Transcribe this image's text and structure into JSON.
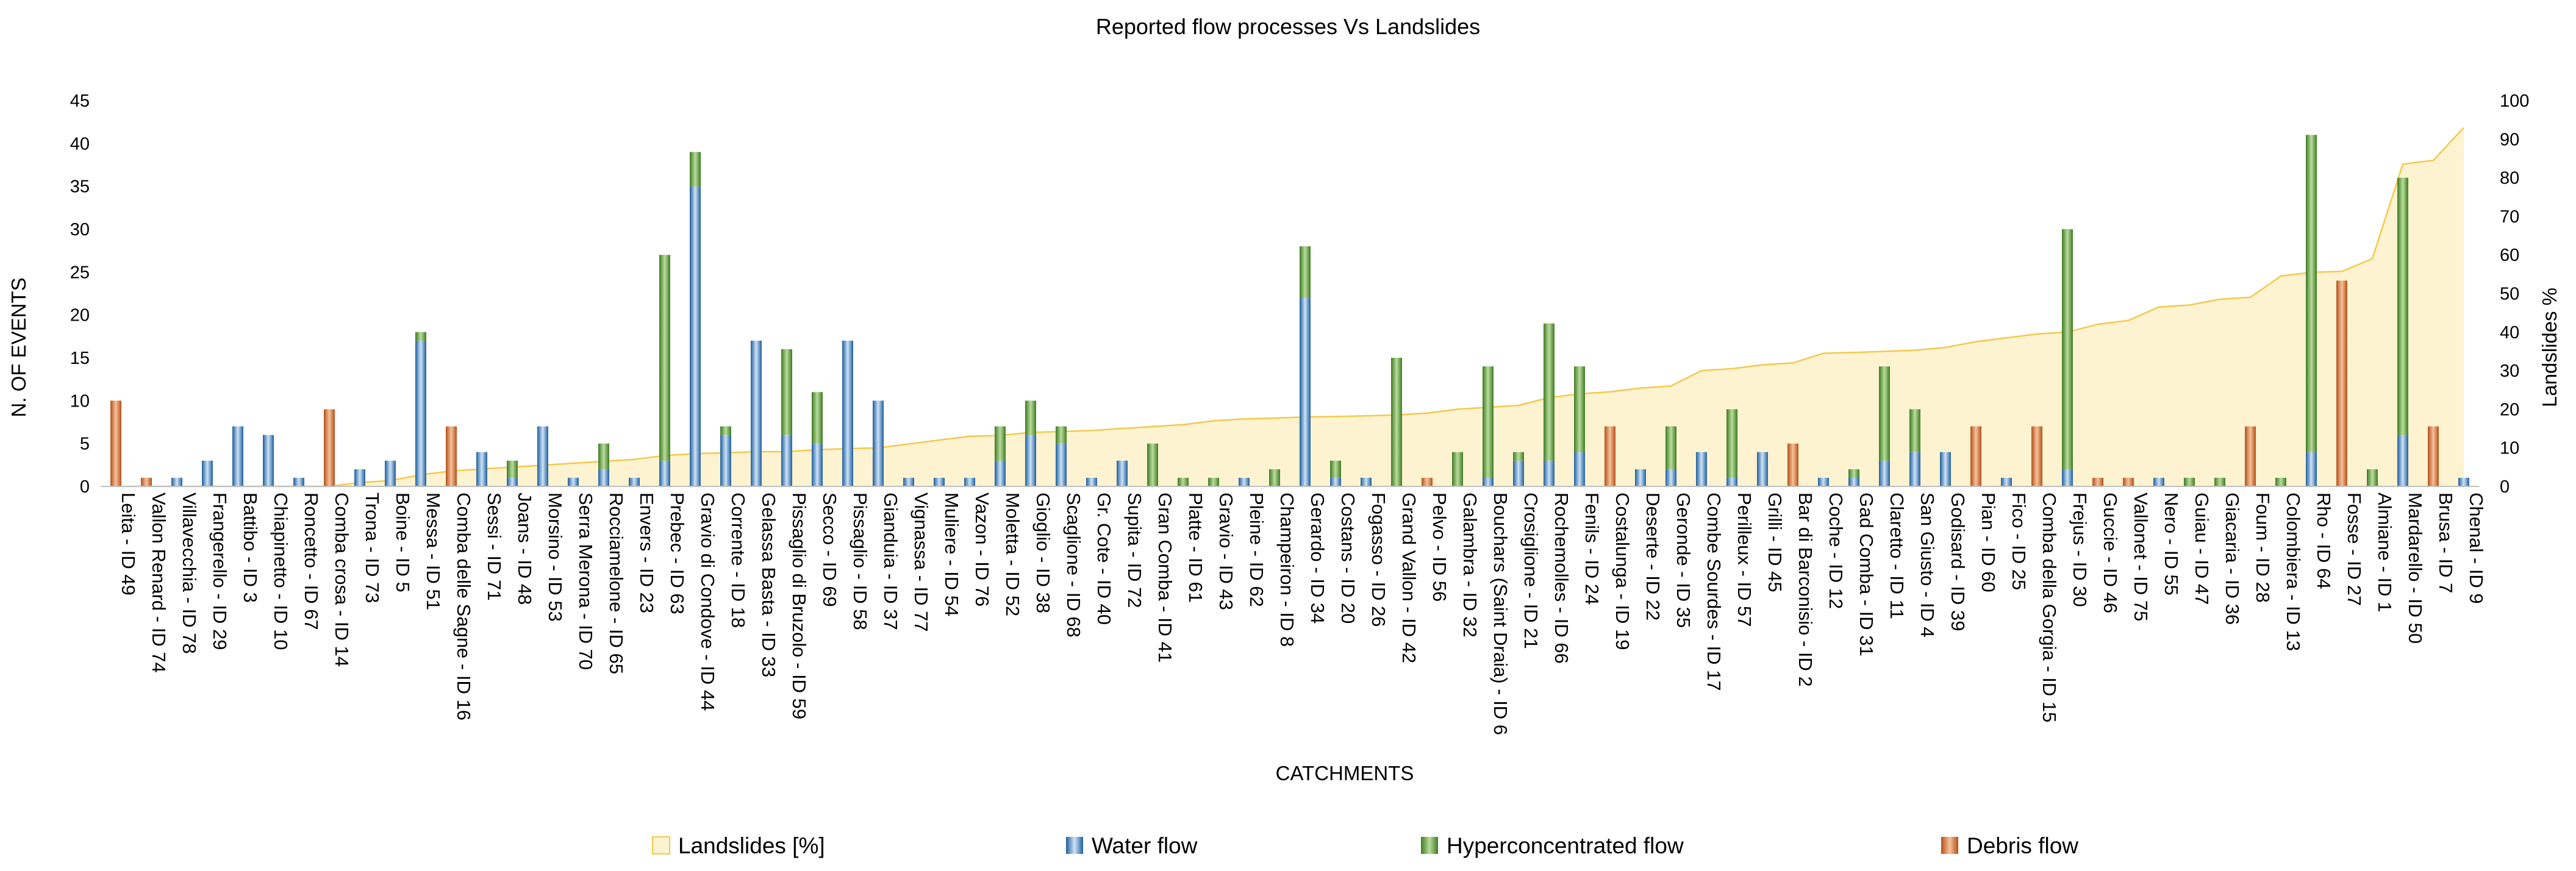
{
  "chart_data": {
    "type": "bar",
    "title": "Reported flow processes Vs Landslides",
    "xlabel": "CATCHMENTS",
    "ylabel": "N. OF EVENTS",
    "y2label": "Landslides %",
    "ylim": [
      0,
      45
    ],
    "yticks": [
      0,
      5,
      10,
      15,
      20,
      25,
      30,
      35,
      40,
      45
    ],
    "y2lim": [
      0,
      100
    ],
    "y2ticks": [
      0,
      10,
      20,
      30,
      40,
      50,
      60,
      70,
      80,
      90,
      100
    ],
    "stacked": true,
    "categories": [
      "Leita - ID 49",
      "Vallon Renard - ID 74",
      "Villavecchia - ID 78",
      "Frangerello - ID 29",
      "Battibo - ID 3",
      "Chiapinetto - ID 10",
      "Roncetto - ID 67",
      "Comba crosa - ID 14",
      "Trona - ID 73",
      "Boine - ID 5",
      "Messa - ID 51",
      "Comba delle Sagne - ID 16",
      "Sessi - ID 71",
      "Joans - ID 48",
      "Morsino - ID 53",
      "Serra Merona - ID 70",
      "Rocciamelone - ID 65",
      "Envers - ID 23",
      "Prebec - ID 63",
      "Gravio di Condove - ID 44",
      "Corrente - ID 18",
      "Gelassa Basta - ID 33",
      "Pissaglio di Bruzolo - ID 59",
      "Secco - ID 69",
      "Pissaglio - ID 58",
      "Gianduia - ID 37",
      "Vignassa - ID 77",
      "Muliere - ID 54",
      "Vazon - ID 76",
      "Moletta - ID 52",
      "Gioglio - ID 38",
      "Scaglione - ID 68",
      "Gr. Cote - ID 40",
      "Supita - ID 72",
      "Gran Comba - ID 41",
      "Platte - ID 61",
      "Gravio - ID 43",
      "Pleine - ID 62",
      "Champeiron - ID 8",
      "Gerardo - ID 34",
      "Costans - ID 20",
      "Fogasso - ID 26",
      "Grand Vallon - ID 42",
      "Pelvo - ID 56",
      "Galambra - ID 32",
      "Bouchars (Saint Draia) - ID 6",
      "Crosiglione - ID 21",
      "Rochemolles - ID 66",
      "Fenils - ID 24",
      "Costalunga - ID 19",
      "Deserte - ID 22",
      "Geronde - ID 35",
      "Combe Sourdes - ID 17",
      "Perilleux - ID 57",
      "Grilli - ID 45",
      "Bar di Barconisio - ID 2",
      "Coche - ID 12",
      "Gad Comba - ID 31",
      "Claretto - ID 11",
      "San Giusto - ID 4",
      "Godisard - ID 39",
      "Pian - ID 60",
      "Fico - ID 25",
      "Comba della Gorgia - ID 15",
      "Frejus - ID 30",
      "Guccie - ID 46",
      "Vallonet - ID 75",
      "Nero - ID 55",
      "Guiau - ID 47",
      "Giacaria - ID 36",
      "Foum - ID 28",
      "Colombiera - ID 13",
      "Rho - ID 64",
      "Fosse - ID 27",
      "Almiane - ID 1",
      "Mardarello - ID 50",
      "Brusa - ID 7",
      "Chenal - ID 9"
    ],
    "series": [
      {
        "name": "Water flow",
        "color": "#3a84c9",
        "values": [
          0,
          0,
          1,
          3,
          7,
          6,
          1,
          0,
          2,
          3,
          17,
          0,
          4,
          1,
          7,
          1,
          2,
          1,
          3,
          35,
          6,
          17,
          6,
          5,
          17,
          10,
          1,
          1,
          1,
          3,
          6,
          5,
          1,
          3,
          0,
          0,
          0,
          1,
          0,
          22,
          1,
          1,
          0,
          0,
          0,
          1,
          3,
          3,
          4,
          0,
          2,
          2,
          4,
          1,
          4,
          0,
          1,
          1,
          3,
          4,
          4,
          0,
          1,
          0,
          2,
          0,
          0,
          1,
          0,
          0,
          0,
          0,
          4,
          0,
          0,
          6,
          0,
          1
        ]
      },
      {
        "name": "Hyperconcentrated flow",
        "color": "#5e9e36",
        "values": [
          0,
          0,
          0,
          0,
          0,
          0,
          0,
          0,
          0,
          0,
          1,
          0,
          0,
          2,
          0,
          0,
          3,
          0,
          24,
          4,
          1,
          0,
          10,
          6,
          0,
          0,
          0,
          0,
          0,
          4,
          4,
          2,
          0,
          0,
          5,
          1,
          1,
          0,
          2,
          6,
          2,
          0,
          15,
          0,
          4,
          13,
          1,
          16,
          10,
          0,
          0,
          5,
          0,
          8,
          0,
          0,
          0,
          1,
          11,
          5,
          0,
          0,
          0,
          0,
          28,
          0,
          0,
          0,
          1,
          1,
          0,
          1,
          37,
          0,
          2,
          30,
          0,
          0
        ]
      },
      {
        "name": "Debris flow",
        "color": "#e07a2e",
        "values": [
          10,
          1,
          0,
          0,
          0,
          0,
          0,
          9,
          0,
          0,
          0,
          7,
          0,
          0,
          0,
          0,
          0,
          0,
          0,
          0,
          0,
          0,
          0,
          0,
          0,
          0,
          0,
          0,
          0,
          0,
          0,
          0,
          0,
          0,
          0,
          0,
          0,
          0,
          0,
          0,
          0,
          0,
          0,
          1,
          0,
          0,
          0,
          0,
          0,
          7,
          0,
          0,
          0,
          0,
          0,
          5,
          0,
          0,
          0,
          0,
          0,
          7,
          0,
          7,
          0,
          1,
          1,
          0,
          0,
          0,
          7,
          0,
          0,
          24,
          0,
          0,
          7,
          0
        ]
      }
    ],
    "line_series": {
      "name": "Landslides [%]",
      "axis": "right",
      "type": "area",
      "values": [
        0,
        0,
        0,
        0,
        0,
        0,
        0,
        0,
        1,
        1.5,
        3,
        4,
        4.5,
        5,
        5.5,
        6,
        6.5,
        7,
        8,
        8.5,
        8.7,
        9,
        9,
        9.5,
        9.8,
        10,
        11,
        12,
        13,
        13.2,
        14,
        14.2,
        14.5,
        15,
        15.5,
        16,
        17,
        17.5,
        17.7,
        18,
        18.1,
        18.3,
        18.5,
        19,
        20,
        20.5,
        21,
        23,
        24,
        24.5,
        25.5,
        26,
        30,
        30.5,
        31.5,
        32,
        34.5,
        34.7,
        35,
        35.3,
        36,
        37.5,
        38.5,
        39.5,
        40,
        42,
        43,
        46.5,
        47,
        48.5,
        49,
        54.5,
        55.5,
        55.7,
        59,
        83.5,
        84.5,
        93
      ],
      "color": "#f2c94c"
    },
    "legend": {
      "position": "bottom",
      "items": [
        "Landslides [%]",
        "Water flow",
        "Hyperconcentrated flow",
        "Debris flow"
      ]
    }
  }
}
